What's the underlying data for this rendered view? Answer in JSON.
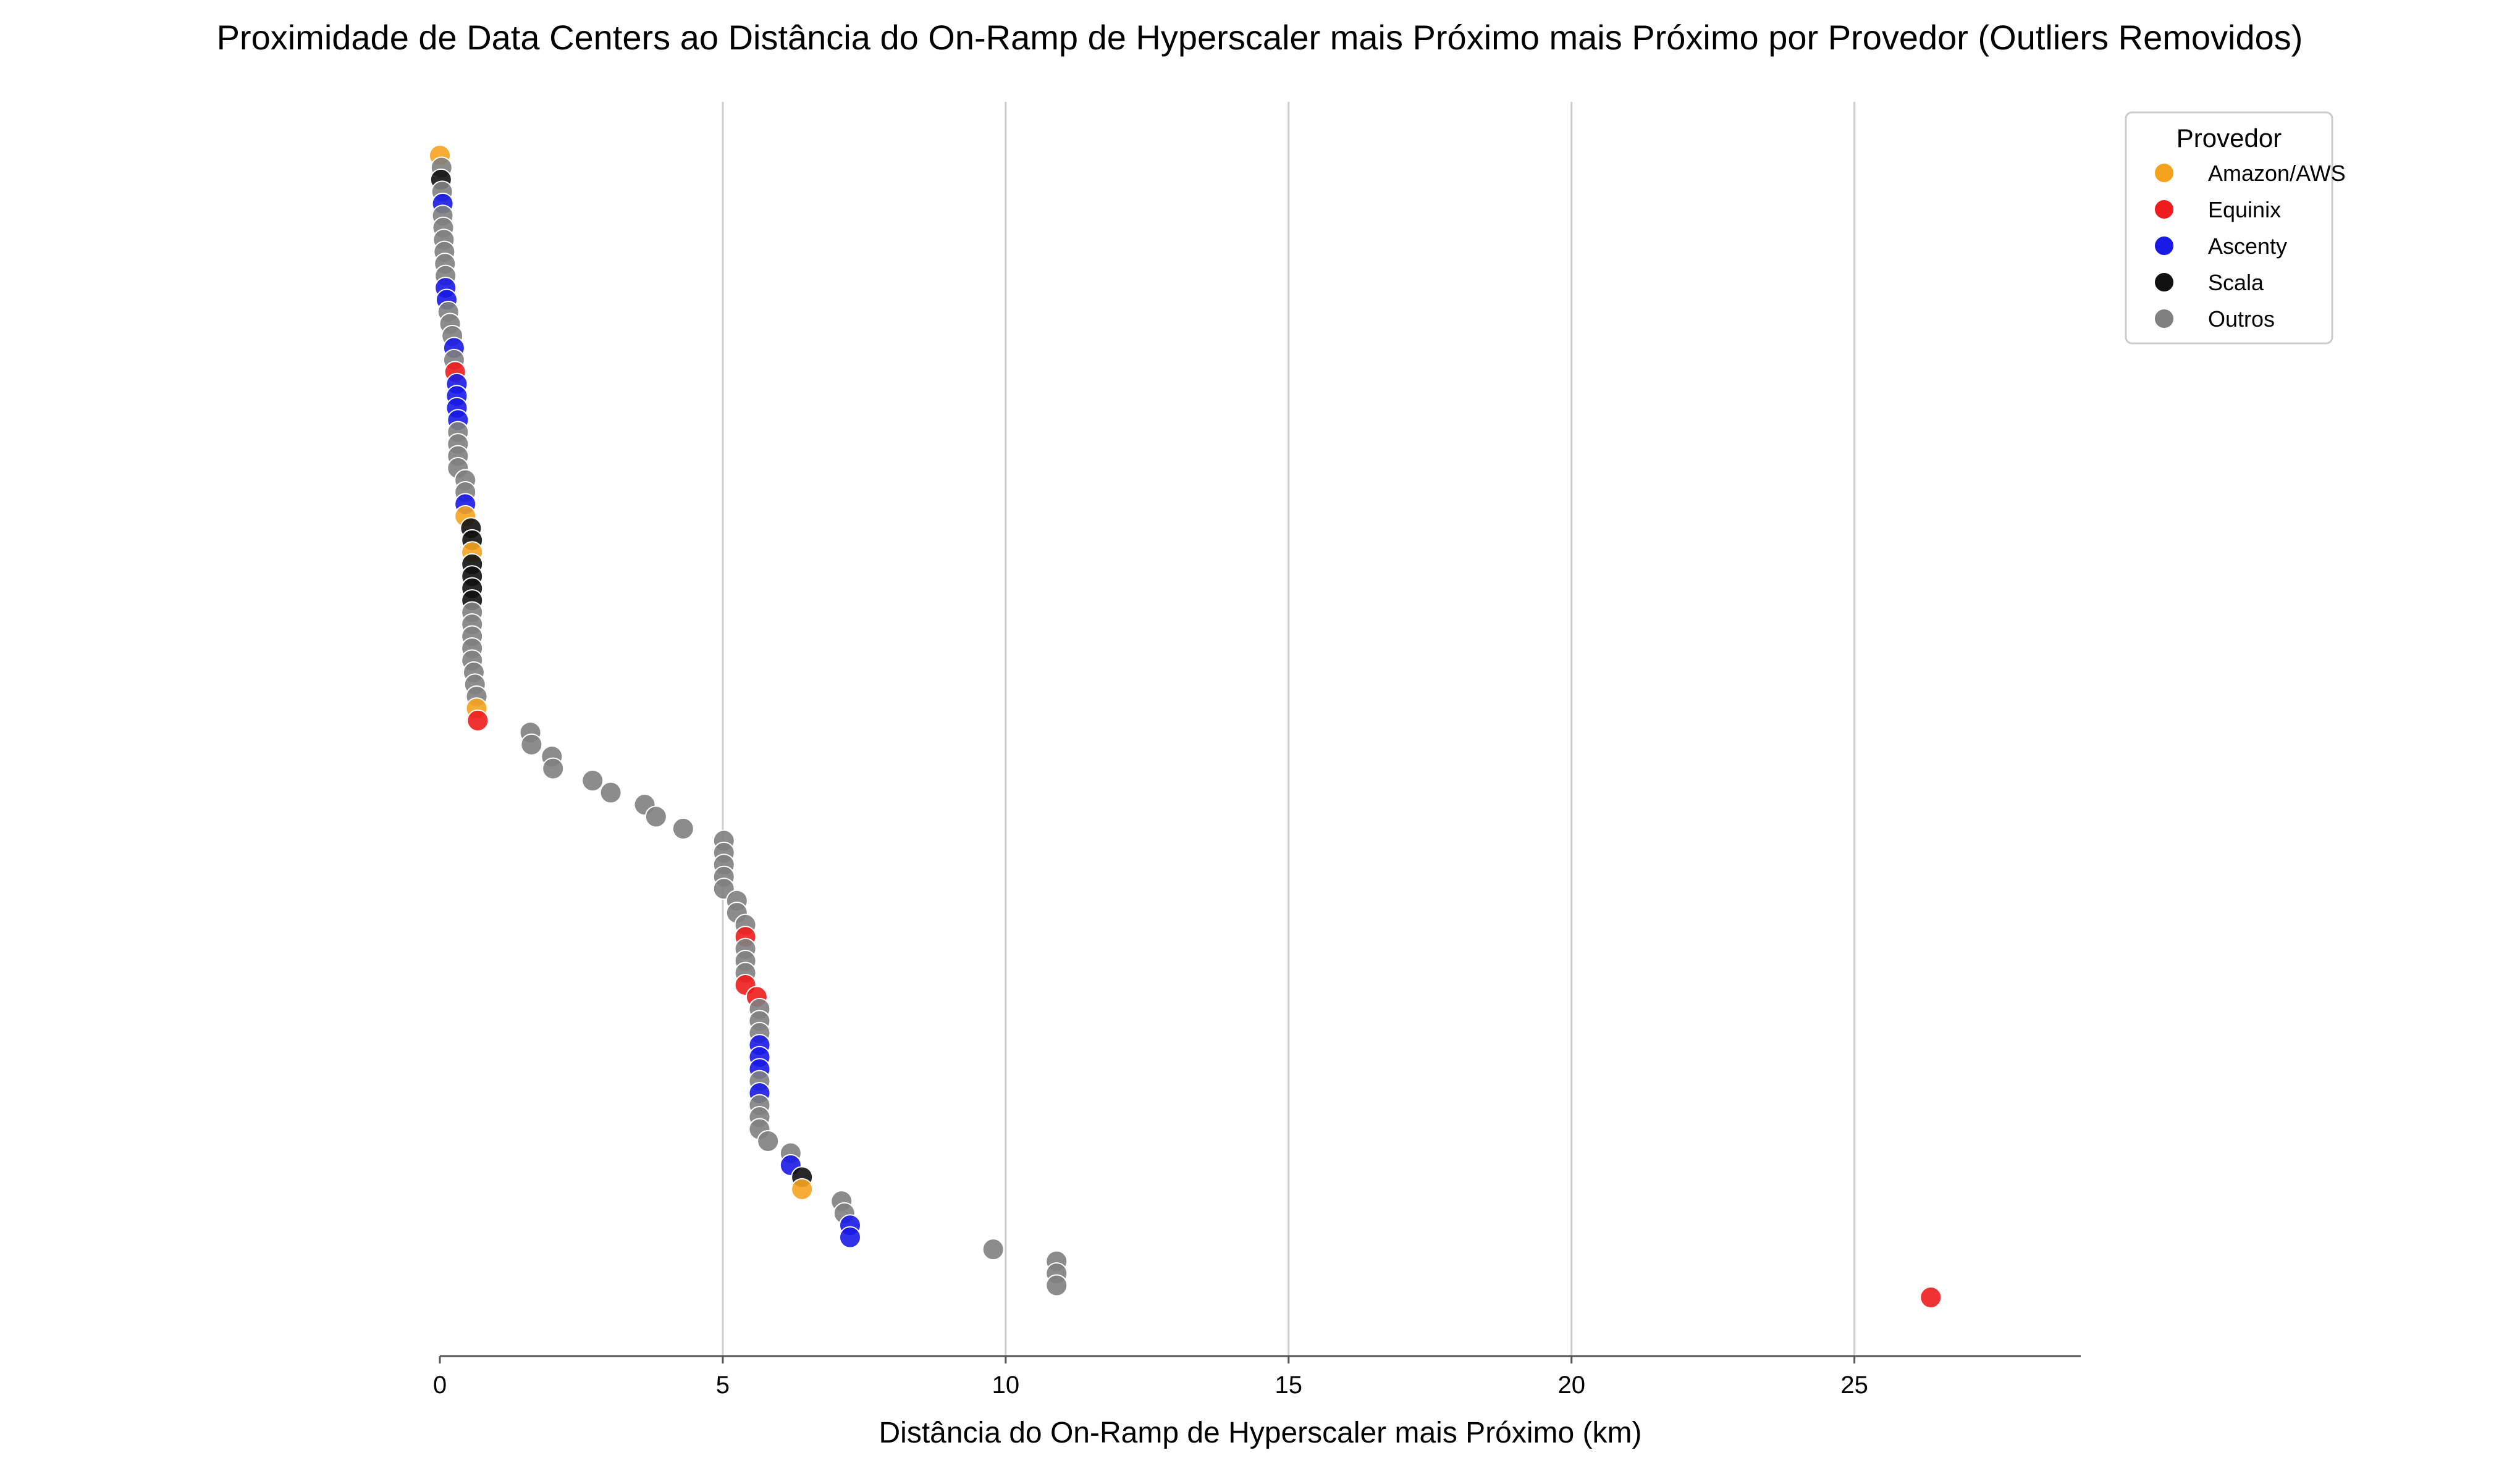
{
  "chart_data": {
    "type": "scatter",
    "title": "Proximidade de Data Centers ao Distância do On-Ramp de Hyperscaler mais Próximo mais Próximo por Provedor (Outliers Removidos)",
    "xlabel": "Distância do On-Ramp de Hyperscaler mais Próximo (km)",
    "ylabel": "",
    "xlim": [
      0,
      29
    ],
    "xticks": [
      0,
      5,
      10,
      15,
      20,
      25
    ],
    "grid_x": true,
    "legend": {
      "title": "Provedor",
      "placement": "right-top",
      "entries": [
        {
          "name": "Amazon/AWS",
          "color": "#f5a31f"
        },
        {
          "name": "Equinix",
          "color": "#ee1c1c"
        },
        {
          "name": "Ascenty",
          "color": "#1a1ae6"
        },
        {
          "name": "Scala",
          "color": "#111111"
        },
        {
          "name": "Outros",
          "color": "#808080"
        }
      ]
    },
    "points": [
      {
        "x": 0.0,
        "provider": "Amazon/AWS"
      },
      {
        "x": 0.03,
        "provider": "Outros"
      },
      {
        "x": 0.02,
        "provider": "Scala"
      },
      {
        "x": 0.04,
        "provider": "Outros"
      },
      {
        "x": 0.05,
        "provider": "Ascenty"
      },
      {
        "x": 0.05,
        "provider": "Outros"
      },
      {
        "x": 0.06,
        "provider": "Outros"
      },
      {
        "x": 0.07,
        "provider": "Outros"
      },
      {
        "x": 0.08,
        "provider": "Outros"
      },
      {
        "x": 0.09,
        "provider": "Outros"
      },
      {
        "x": 0.1,
        "provider": "Outros"
      },
      {
        "x": 0.1,
        "provider": "Ascenty"
      },
      {
        "x": 0.12,
        "provider": "Ascenty"
      },
      {
        "x": 0.15,
        "provider": "Outros"
      },
      {
        "x": 0.18,
        "provider": "Outros"
      },
      {
        "x": 0.22,
        "provider": "Outros"
      },
      {
        "x": 0.25,
        "provider": "Ascenty"
      },
      {
        "x": 0.25,
        "provider": "Outros"
      },
      {
        "x": 0.27,
        "provider": "Equinix"
      },
      {
        "x": 0.3,
        "provider": "Ascenty"
      },
      {
        "x": 0.3,
        "provider": "Ascenty"
      },
      {
        "x": 0.3,
        "provider": "Ascenty"
      },
      {
        "x": 0.32,
        "provider": "Ascenty"
      },
      {
        "x": 0.32,
        "provider": "Outros"
      },
      {
        "x": 0.32,
        "provider": "Outros"
      },
      {
        "x": 0.32,
        "provider": "Outros"
      },
      {
        "x": 0.32,
        "provider": "Outros"
      },
      {
        "x": 0.45,
        "provider": "Outros"
      },
      {
        "x": 0.45,
        "provider": "Outros"
      },
      {
        "x": 0.45,
        "provider": "Ascenty"
      },
      {
        "x": 0.45,
        "provider": "Amazon/AWS"
      },
      {
        "x": 0.55,
        "provider": "Scala"
      },
      {
        "x": 0.57,
        "provider": "Scala"
      },
      {
        "x": 0.57,
        "provider": "Amazon/AWS"
      },
      {
        "x": 0.57,
        "provider": "Scala"
      },
      {
        "x": 0.57,
        "provider": "Scala"
      },
      {
        "x": 0.57,
        "provider": "Scala"
      },
      {
        "x": 0.57,
        "provider": "Scala"
      },
      {
        "x": 0.57,
        "provider": "Outros"
      },
      {
        "x": 0.57,
        "provider": "Outros"
      },
      {
        "x": 0.57,
        "provider": "Outros"
      },
      {
        "x": 0.57,
        "provider": "Outros"
      },
      {
        "x": 0.57,
        "provider": "Outros"
      },
      {
        "x": 0.6,
        "provider": "Outros"
      },
      {
        "x": 0.62,
        "provider": "Outros"
      },
      {
        "x": 0.65,
        "provider": "Outros"
      },
      {
        "x": 0.65,
        "provider": "Amazon/AWS"
      },
      {
        "x": 0.67,
        "provider": "Equinix"
      },
      {
        "x": 1.6,
        "provider": "Outros"
      },
      {
        "x": 1.62,
        "provider": "Outros"
      },
      {
        "x": 1.98,
        "provider": "Outros"
      },
      {
        "x": 2.0,
        "provider": "Outros"
      },
      {
        "x": 2.7,
        "provider": "Outros"
      },
      {
        "x": 3.02,
        "provider": "Outros"
      },
      {
        "x": 3.62,
        "provider": "Outros"
      },
      {
        "x": 3.82,
        "provider": "Outros"
      },
      {
        "x": 4.3,
        "provider": "Outros"
      },
      {
        "x": 5.02,
        "provider": "Outros"
      },
      {
        "x": 5.02,
        "provider": "Outros"
      },
      {
        "x": 5.02,
        "provider": "Outros"
      },
      {
        "x": 5.02,
        "provider": "Outros"
      },
      {
        "x": 5.02,
        "provider": "Outros"
      },
      {
        "x": 5.25,
        "provider": "Outros"
      },
      {
        "x": 5.25,
        "provider": "Outros"
      },
      {
        "x": 5.4,
        "provider": "Outros"
      },
      {
        "x": 5.4,
        "provider": "Equinix"
      },
      {
        "x": 5.4,
        "provider": "Outros"
      },
      {
        "x": 5.4,
        "provider": "Outros"
      },
      {
        "x": 5.4,
        "provider": "Outros"
      },
      {
        "x": 5.4,
        "provider": "Equinix"
      },
      {
        "x": 5.6,
        "provider": "Equinix"
      },
      {
        "x": 5.65,
        "provider": "Outros"
      },
      {
        "x": 5.65,
        "provider": "Outros"
      },
      {
        "x": 5.65,
        "provider": "Outros"
      },
      {
        "x": 5.65,
        "provider": "Ascenty"
      },
      {
        "x": 5.65,
        "provider": "Ascenty"
      },
      {
        "x": 5.65,
        "provider": "Ascenty"
      },
      {
        "x": 5.65,
        "provider": "Outros"
      },
      {
        "x": 5.65,
        "provider": "Ascenty"
      },
      {
        "x": 5.65,
        "provider": "Outros"
      },
      {
        "x": 5.65,
        "provider": "Outros"
      },
      {
        "x": 5.65,
        "provider": "Outros"
      },
      {
        "x": 5.8,
        "provider": "Outros"
      },
      {
        "x": 6.2,
        "provider": "Outros"
      },
      {
        "x": 6.2,
        "provider": "Ascenty"
      },
      {
        "x": 6.4,
        "provider": "Scala"
      },
      {
        "x": 6.4,
        "provider": "Amazon/AWS"
      },
      {
        "x": 7.1,
        "provider": "Outros"
      },
      {
        "x": 7.15,
        "provider": "Outros"
      },
      {
        "x": 7.25,
        "provider": "Ascenty"
      },
      {
        "x": 7.25,
        "provider": "Ascenty"
      },
      {
        "x": 9.78,
        "provider": "Outros"
      },
      {
        "x": 10.9,
        "provider": "Outros"
      },
      {
        "x": 10.9,
        "provider": "Outros"
      },
      {
        "x": 10.9,
        "provider": "Outros"
      },
      {
        "x": 26.35,
        "provider": "Equinix"
      }
    ]
  }
}
